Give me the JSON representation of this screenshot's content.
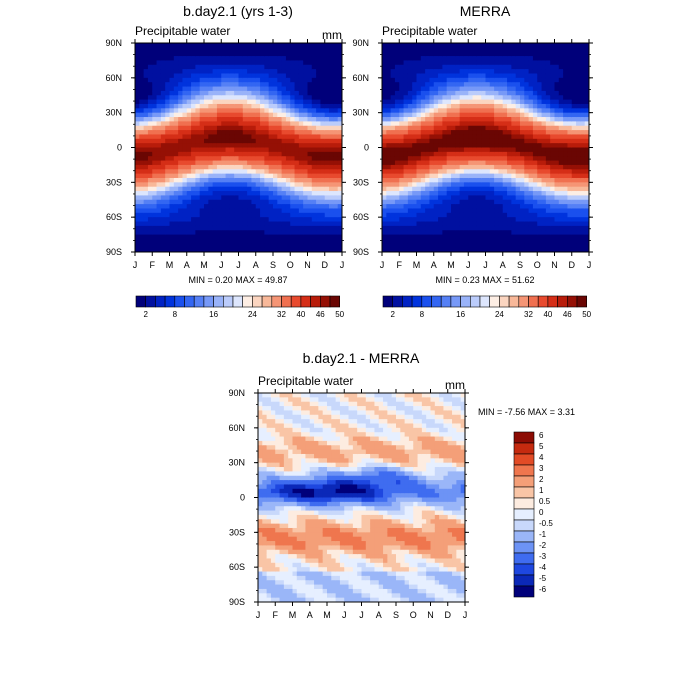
{
  "chart_data": [
    {
      "type": "heatmap",
      "title": "b.day2.1 (yrs 1-3)",
      "left_label": "Precipitable water",
      "units": "mm",
      "x_ticks": [
        "J",
        "F",
        "M",
        "A",
        "M",
        "J",
        "J",
        "A",
        "S",
        "O",
        "N",
        "D",
        "J"
      ],
      "y_ticks": [
        "90N",
        "60N",
        "30N",
        "0",
        "30S",
        "60S",
        "90S"
      ],
      "ylim": [
        -90,
        90
      ],
      "stats": "MIN =   0.20 MAX =  49.87",
      "min": 0.2,
      "max": 49.87,
      "levels": [
        2,
        4,
        6,
        8,
        10,
        12,
        14,
        16,
        18,
        20,
        22,
        24,
        26,
        28,
        32,
        36,
        40,
        44,
        46,
        48,
        50
      ],
      "colorbar_labels": [
        "2",
        "8",
        "16",
        "24",
        "32",
        "40",
        "46",
        "50"
      ],
      "colorbar_orientation": "horizontal"
    },
    {
      "type": "heatmap",
      "title": "MERRA",
      "left_label": "Precipitable water",
      "units": "",
      "x_ticks": [
        "J",
        "F",
        "M",
        "A",
        "M",
        "J",
        "J",
        "A",
        "S",
        "O",
        "N",
        "D",
        "J"
      ],
      "y_ticks": [
        "90N",
        "60N",
        "30N",
        "0",
        "30S",
        "60S",
        "90S"
      ],
      "ylim": [
        -90,
        90
      ],
      "stats": "MIN =   0.23 MAX =  51.62",
      "min": 0.23,
      "max": 51.62,
      "levels": [
        2,
        4,
        6,
        8,
        10,
        12,
        14,
        16,
        18,
        20,
        22,
        24,
        26,
        28,
        32,
        36,
        40,
        44,
        46,
        48,
        50
      ],
      "colorbar_labels": [
        "2",
        "8",
        "16",
        "24",
        "32",
        "40",
        "46",
        "50"
      ],
      "colorbar_orientation": "horizontal"
    },
    {
      "type": "heatmap",
      "title": "b.day2.1 - MERRA",
      "left_label": "Precipitable water",
      "units": "mm",
      "x_ticks": [
        "J",
        "F",
        "M",
        "A",
        "M",
        "J",
        "J",
        "A",
        "S",
        "O",
        "N",
        "D",
        "J"
      ],
      "y_ticks": [
        "90N",
        "60N",
        "30N",
        "0",
        "30S",
        "60S",
        "90S"
      ],
      "ylim": [
        -90,
        90
      ],
      "stats": "MIN =  -7.56 MAX =   3.31",
      "min": -7.56,
      "max": 3.31,
      "levels": [
        -6,
        -5,
        -4,
        -3,
        -2,
        -1,
        -0.5,
        0,
        0.5,
        1,
        2,
        3,
        4,
        5,
        6
      ],
      "colorbar_labels": [
        "6",
        "5",
        "4",
        "3",
        "2",
        "1",
        "0.5",
        "0",
        "-0.5",
        "-1",
        "-2",
        "-3",
        "-4",
        "-5",
        "-6"
      ],
      "colorbar_orientation": "vertical"
    }
  ]
}
